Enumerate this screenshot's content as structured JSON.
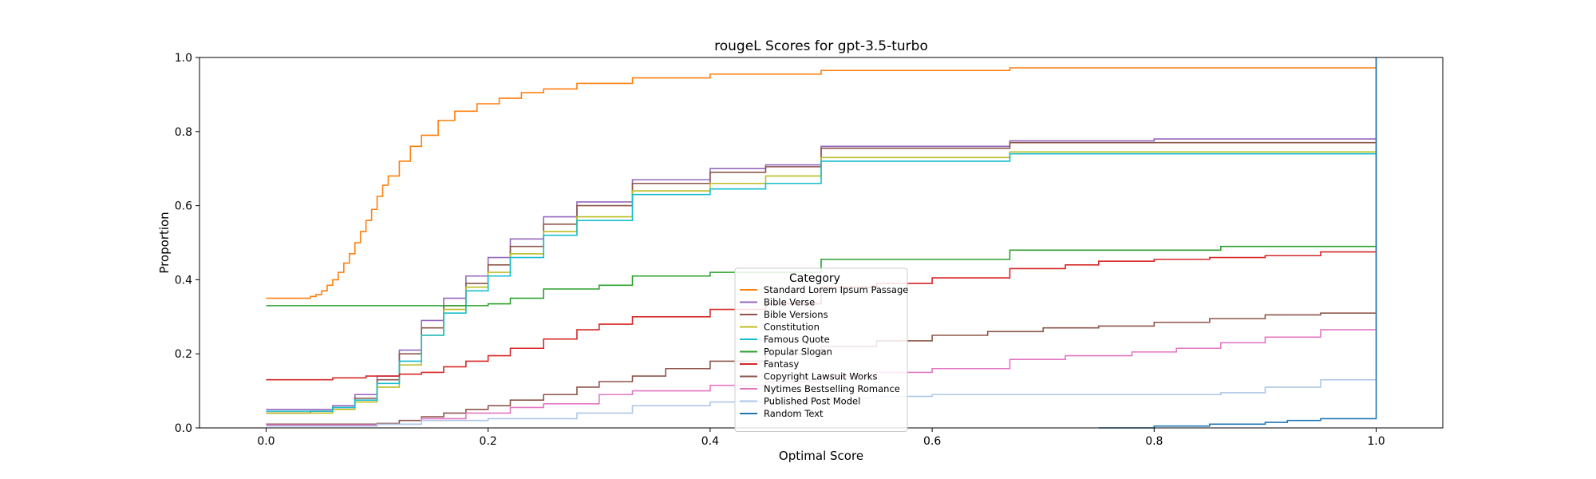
{
  "chart_data": {
    "type": "line",
    "title": "rougeL Scores for gpt-3.5-turbo",
    "xlabel": "Optimal Score",
    "ylabel": "Proportion",
    "xlim": [
      -0.06,
      1.06
    ],
    "ylim": [
      0,
      1
    ],
    "xticks": [
      "0.0",
      "0.2",
      "0.4",
      "0.6",
      "0.8",
      "1.0"
    ],
    "yticks": [
      "0.0",
      "0.2",
      "0.4",
      "0.6",
      "0.8",
      "1.0"
    ],
    "legend": {
      "title": "Category",
      "position": "lower-center"
    },
    "series": [
      {
        "name": "Standard Lorem Ipsum Passage",
        "color": "#ff7f0e",
        "points": [
          [
            0.0,
            0.35
          ],
          [
            0.04,
            0.355
          ],
          [
            0.045,
            0.36
          ],
          [
            0.05,
            0.37
          ],
          [
            0.055,
            0.385
          ],
          [
            0.06,
            0.4
          ],
          [
            0.065,
            0.42
          ],
          [
            0.07,
            0.445
          ],
          [
            0.075,
            0.47
          ],
          [
            0.08,
            0.5
          ],
          [
            0.085,
            0.53
          ],
          [
            0.09,
            0.56
          ],
          [
            0.095,
            0.59
          ],
          [
            0.1,
            0.625
          ],
          [
            0.105,
            0.655
          ],
          [
            0.11,
            0.68
          ],
          [
            0.12,
            0.72
          ],
          [
            0.13,
            0.76
          ],
          [
            0.14,
            0.79
          ],
          [
            0.155,
            0.83
          ],
          [
            0.17,
            0.855
          ],
          [
            0.19,
            0.875
          ],
          [
            0.21,
            0.89
          ],
          [
            0.23,
            0.905
          ],
          [
            0.25,
            0.915
          ],
          [
            0.28,
            0.93
          ],
          [
            0.33,
            0.945
          ],
          [
            0.4,
            0.955
          ],
          [
            0.5,
            0.965
          ],
          [
            0.67,
            0.972
          ],
          [
            1.0,
            0.975
          ]
        ]
      },
      {
        "name": "Bible Verse",
        "color": "#9467bd",
        "points": [
          [
            0.0,
            0.05
          ],
          [
            0.04,
            0.05
          ],
          [
            0.06,
            0.06
          ],
          [
            0.08,
            0.09
          ],
          [
            0.1,
            0.14
          ],
          [
            0.12,
            0.21
          ],
          [
            0.14,
            0.29
          ],
          [
            0.16,
            0.35
          ],
          [
            0.18,
            0.41
          ],
          [
            0.2,
            0.46
          ],
          [
            0.22,
            0.51
          ],
          [
            0.25,
            0.57
          ],
          [
            0.28,
            0.61
          ],
          [
            0.33,
            0.67
          ],
          [
            0.4,
            0.7
          ],
          [
            0.45,
            0.71
          ],
          [
            0.5,
            0.76
          ],
          [
            0.67,
            0.775
          ],
          [
            0.8,
            0.78
          ],
          [
            1.0,
            0.78
          ]
        ]
      },
      {
        "name": "Bible Versions",
        "color": "#8c564b",
        "points": [
          [
            0.0,
            0.04
          ],
          [
            0.04,
            0.045
          ],
          [
            0.06,
            0.055
          ],
          [
            0.08,
            0.08
          ],
          [
            0.1,
            0.13
          ],
          [
            0.12,
            0.2
          ],
          [
            0.14,
            0.27
          ],
          [
            0.16,
            0.33
          ],
          [
            0.18,
            0.39
          ],
          [
            0.2,
            0.44
          ],
          [
            0.22,
            0.49
          ],
          [
            0.25,
            0.55
          ],
          [
            0.28,
            0.6
          ],
          [
            0.33,
            0.66
          ],
          [
            0.4,
            0.69
          ],
          [
            0.45,
            0.705
          ],
          [
            0.5,
            0.755
          ],
          [
            0.67,
            0.77
          ],
          [
            1.0,
            0.775
          ]
        ]
      },
      {
        "name": "Constitution",
        "color": "#bcbd22",
        "points": [
          [
            0.0,
            0.04
          ],
          [
            0.04,
            0.04
          ],
          [
            0.06,
            0.05
          ],
          [
            0.08,
            0.07
          ],
          [
            0.1,
            0.11
          ],
          [
            0.12,
            0.17
          ],
          [
            0.14,
            0.25
          ],
          [
            0.16,
            0.32
          ],
          [
            0.18,
            0.38
          ],
          [
            0.2,
            0.42
          ],
          [
            0.22,
            0.47
          ],
          [
            0.25,
            0.53
          ],
          [
            0.28,
            0.57
          ],
          [
            0.33,
            0.64
          ],
          [
            0.4,
            0.66
          ],
          [
            0.45,
            0.68
          ],
          [
            0.5,
            0.73
          ],
          [
            0.67,
            0.745
          ],
          [
            1.0,
            0.75
          ]
        ]
      },
      {
        "name": "Famous Quote",
        "color": "#17becf",
        "points": [
          [
            0.0,
            0.045
          ],
          [
            0.04,
            0.045
          ],
          [
            0.06,
            0.055
          ],
          [
            0.08,
            0.075
          ],
          [
            0.1,
            0.12
          ],
          [
            0.12,
            0.18
          ],
          [
            0.14,
            0.25
          ],
          [
            0.16,
            0.31
          ],
          [
            0.18,
            0.37
          ],
          [
            0.2,
            0.41
          ],
          [
            0.22,
            0.46
          ],
          [
            0.25,
            0.52
          ],
          [
            0.28,
            0.56
          ],
          [
            0.33,
            0.63
          ],
          [
            0.4,
            0.645
          ],
          [
            0.45,
            0.66
          ],
          [
            0.5,
            0.72
          ],
          [
            0.67,
            0.74
          ],
          [
            1.0,
            0.745
          ]
        ]
      },
      {
        "name": "Popular Slogan",
        "color": "#2ca02c",
        "points": [
          [
            0.0,
            0.33
          ],
          [
            0.2,
            0.335
          ],
          [
            0.22,
            0.35
          ],
          [
            0.25,
            0.355
          ],
          [
            0.25,
            0.375
          ],
          [
            0.3,
            0.385
          ],
          [
            0.33,
            0.41
          ],
          [
            0.4,
            0.42
          ],
          [
            0.45,
            0.42
          ],
          [
            0.5,
            0.455
          ],
          [
            0.67,
            0.48
          ],
          [
            0.86,
            0.49
          ],
          [
            1.0,
            0.49
          ]
        ]
      },
      {
        "name": "Fantasy",
        "color": "#d62728",
        "points": [
          [
            0.0,
            0.13
          ],
          [
            0.06,
            0.135
          ],
          [
            0.09,
            0.14
          ],
          [
            0.12,
            0.145
          ],
          [
            0.14,
            0.15
          ],
          [
            0.16,
            0.165
          ],
          [
            0.18,
            0.18
          ],
          [
            0.2,
            0.195
          ],
          [
            0.22,
            0.215
          ],
          [
            0.25,
            0.24
          ],
          [
            0.28,
            0.265
          ],
          [
            0.3,
            0.28
          ],
          [
            0.33,
            0.3
          ],
          [
            0.4,
            0.32
          ],
          [
            0.45,
            0.335
          ],
          [
            0.5,
            0.38
          ],
          [
            0.55,
            0.39
          ],
          [
            0.6,
            0.405
          ],
          [
            0.67,
            0.43
          ],
          [
            0.72,
            0.44
          ],
          [
            0.75,
            0.45
          ],
          [
            0.8,
            0.455
          ],
          [
            0.85,
            0.46
          ],
          [
            0.9,
            0.465
          ],
          [
            0.95,
            0.475
          ],
          [
            1.0,
            0.48
          ]
        ]
      },
      {
        "name": "Copyright Lawsuit Works",
        "color": "#8c564b",
        "points": [
          [
            0.0,
            0.01
          ],
          [
            0.1,
            0.012
          ],
          [
            0.12,
            0.02
          ],
          [
            0.14,
            0.03
          ],
          [
            0.16,
            0.04
          ],
          [
            0.18,
            0.05
          ],
          [
            0.2,
            0.06
          ],
          [
            0.22,
            0.075
          ],
          [
            0.25,
            0.09
          ],
          [
            0.28,
            0.11
          ],
          [
            0.3,
            0.125
          ],
          [
            0.33,
            0.14
          ],
          [
            0.36,
            0.16
          ],
          [
            0.4,
            0.18
          ],
          [
            0.45,
            0.2
          ],
          [
            0.5,
            0.22
          ],
          [
            0.55,
            0.235
          ],
          [
            0.6,
            0.25
          ],
          [
            0.65,
            0.26
          ],
          [
            0.7,
            0.27
          ],
          [
            0.75,
            0.275
          ],
          [
            0.8,
            0.285
          ],
          [
            0.85,
            0.295
          ],
          [
            0.9,
            0.305
          ],
          [
            0.95,
            0.31
          ],
          [
            1.0,
            0.315
          ]
        ]
      },
      {
        "name": "Nytimes Bestselling Romance",
        "color": "#e377c2",
        "points": [
          [
            0.0,
            0.008
          ],
          [
            0.1,
            0.01
          ],
          [
            0.14,
            0.025
          ],
          [
            0.18,
            0.04
          ],
          [
            0.22,
            0.055
          ],
          [
            0.25,
            0.065
          ],
          [
            0.3,
            0.09
          ],
          [
            0.33,
            0.1
          ],
          [
            0.4,
            0.115
          ],
          [
            0.45,
            0.125
          ],
          [
            0.5,
            0.14
          ],
          [
            0.55,
            0.15
          ],
          [
            0.6,
            0.16
          ],
          [
            0.67,
            0.185
          ],
          [
            0.72,
            0.195
          ],
          [
            0.78,
            0.205
          ],
          [
            0.82,
            0.215
          ],
          [
            0.86,
            0.23
          ],
          [
            0.9,
            0.245
          ],
          [
            0.95,
            0.265
          ],
          [
            1.0,
            0.275
          ]
        ]
      },
      {
        "name": "Published Post Model",
        "color": "#aec7e8",
        "points": [
          [
            0.0,
            0.005
          ],
          [
            0.1,
            0.01
          ],
          [
            0.14,
            0.02
          ],
          [
            0.2,
            0.025
          ],
          [
            0.28,
            0.04
          ],
          [
            0.33,
            0.06
          ],
          [
            0.4,
            0.07
          ],
          [
            0.5,
            0.08
          ],
          [
            0.55,
            0.085
          ],
          [
            0.6,
            0.09
          ],
          [
            0.67,
            0.09
          ],
          [
            0.86,
            0.095
          ],
          [
            0.9,
            0.11
          ],
          [
            0.95,
            0.13
          ],
          [
            1.0,
            0.135
          ]
        ]
      },
      {
        "name": "Random Text",
        "color": "#1f77b4",
        "points": [
          [
            0.75,
            0.0
          ],
          [
            0.8,
            0.005
          ],
          [
            0.85,
            0.01
          ],
          [
            0.9,
            0.015
          ],
          [
            0.92,
            0.02
          ],
          [
            0.95,
            0.025
          ],
          [
            1.0,
            0.035
          ]
        ]
      }
    ]
  }
}
